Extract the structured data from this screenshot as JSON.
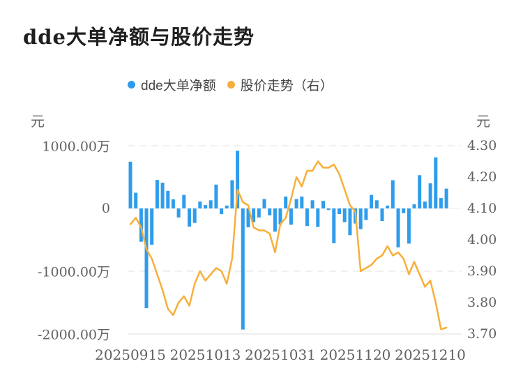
{
  "title": "dde大单净额与股价走势",
  "legend": {
    "items": [
      {
        "label": "dde大单净额"
      },
      {
        "label": "股价走势（右）"
      }
    ]
  },
  "colors": {
    "bar_blue": "#2f9ceb",
    "line_orange": "#f7af3b",
    "title_text": "#1f1f1f",
    "axis_text": "#616161",
    "legend_text": "#454545",
    "grid_line": "#e2e2e2",
    "zero_line": "#ececec",
    "background": "#ffffff"
  },
  "chart_data": {
    "type": "bar+line",
    "title": "dde大单净额与股价走势",
    "grid": "horizontal dashed gridlines at ±1000.00万, light zero line, solid bottom axis",
    "legend_position": "top-center",
    "x_tick_labels": [
      "20250915",
      "20251013",
      "20251031",
      "20251120",
      "20251210"
    ],
    "left_axis": {
      "unit": "元",
      "range_wan": [
        -2000,
        1000
      ],
      "tick_labels": [
        "1000.00万",
        "0",
        "-1000.00万",
        "-2000.00万"
      ]
    },
    "right_axis": {
      "unit": "元",
      "range": [
        3.7,
        4.3
      ],
      "tick_labels": [
        "4.30",
        "4.20",
        "4.10",
        "4.00",
        "3.90",
        "3.80",
        "3.70"
      ]
    },
    "series": [
      {
        "name": "dde大单净额",
        "type": "bar",
        "axis": "left",
        "unit": "万元",
        "color": "#2f9ceb",
        "values": [
          745,
          250,
          -530,
          -1590,
          -580,
          455,
          410,
          280,
          145,
          -145,
          215,
          -290,
          -230,
          110,
          55,
          130,
          380,
          -90,
          45,
          450,
          920,
          -1930,
          -300,
          -220,
          -145,
          150,
          -110,
          -370,
          -255,
          190,
          -260,
          150,
          190,
          -280,
          130,
          -295,
          120,
          -25,
          -555,
          -90,
          -220,
          -425,
          -240,
          -330,
          -185,
          215,
          130,
          -200,
          45,
          450,
          -620,
          -75,
          -560,
          65,
          530,
          110,
          400,
          815,
          165,
          315
        ]
      },
      {
        "name": "股价走势",
        "type": "line",
        "axis": "right",
        "unit": "元",
        "color": "#f7af3b",
        "values": [
          4.05,
          4.07,
          4.04,
          3.97,
          3.94,
          3.89,
          3.84,
          3.78,
          3.76,
          3.8,
          3.82,
          3.79,
          3.86,
          3.9,
          3.87,
          3.89,
          3.91,
          3.9,
          3.86,
          3.94,
          4.16,
          4.12,
          4.11,
          4.04,
          4.03,
          4.03,
          4.02,
          3.96,
          4.05,
          4.07,
          4.13,
          4.2,
          4.17,
          4.22,
          4.22,
          4.25,
          4.23,
          4.23,
          4.24,
          4.21,
          4.16,
          4.11,
          4.09,
          3.9,
          3.91,
          3.92,
          3.94,
          3.95,
          3.98,
          3.95,
          3.96,
          3.94,
          3.89,
          3.93,
          3.89,
          3.85,
          3.87,
          3.8,
          3.715,
          3.72
        ]
      }
    ]
  }
}
